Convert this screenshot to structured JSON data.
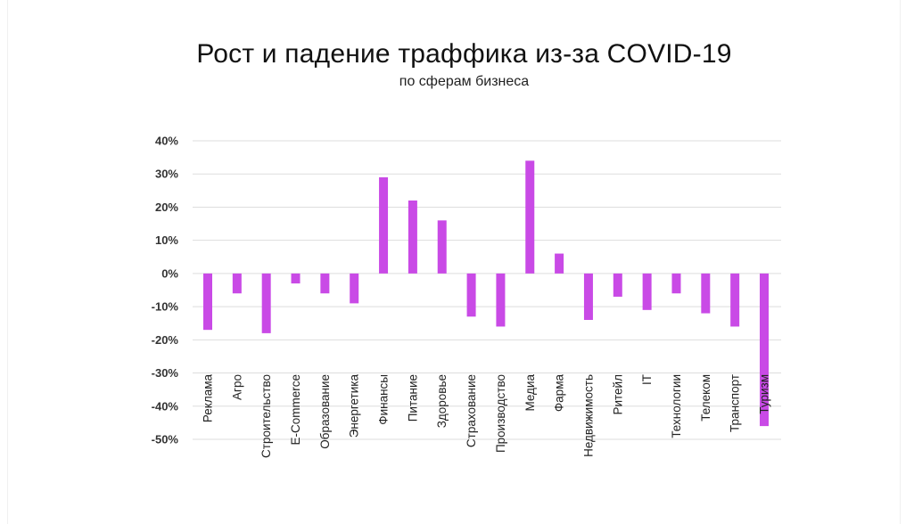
{
  "chart_data": {
    "type": "bar",
    "title": "Рост и падение траффика из-за COVID-19",
    "subtitle": "по сферам бизнеса",
    "categories": [
      "Реклама",
      "Агро",
      "Строительство",
      "E-Commerce",
      "Образование",
      "Энергетика",
      "Финансы",
      "Питание",
      "Здоровье",
      "Страхование",
      "Производство",
      "Медиа",
      "Фарма",
      "Недвижимость",
      "Ритейл",
      "IT",
      "Технологии",
      "Телеком",
      "Транспорт",
      "Туризм"
    ],
    "series": [
      {
        "values": [
          -17,
          -6,
          -18,
          -3,
          -6,
          -9,
          29,
          22,
          16,
          -13,
          -16,
          34,
          6,
          -14,
          -7,
          -11,
          -6,
          -12,
          -16,
          -46
        ]
      }
    ],
    "y_ticks": [
      "40%",
      "30%",
      "20%",
      "10%",
      "0%",
      "-10%",
      "-20%",
      "-30%",
      "-40%",
      "-50%"
    ],
    "ylim": [
      -50,
      40
    ],
    "grid": true,
    "legend": "none",
    "colors": {
      "bar": "#c94ae6",
      "grid": "#dddddd",
      "text": "#222222"
    }
  }
}
